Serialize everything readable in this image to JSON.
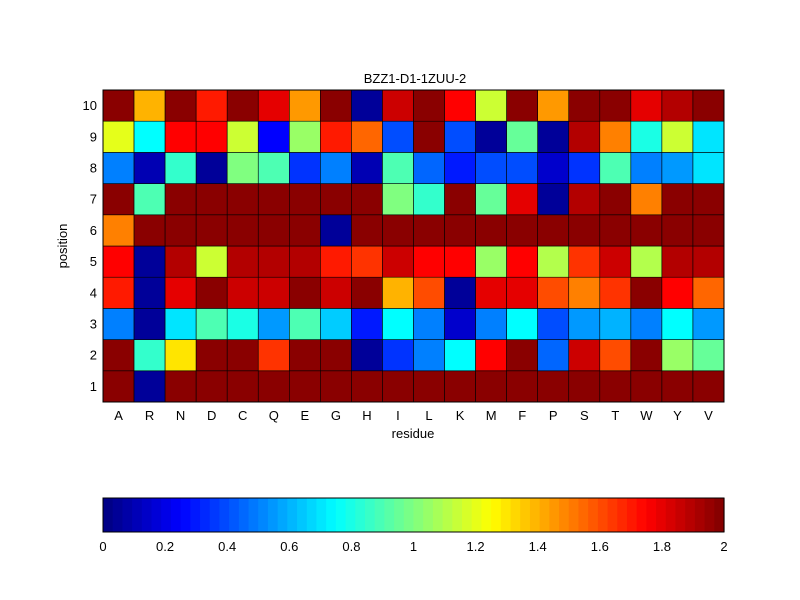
{
  "chart_data": {
    "type": "heatmap",
    "title": "BZZ1-D1-1ZUU-2",
    "xlabel": "residue",
    "ylabel": "position",
    "x_categories": [
      "A",
      "R",
      "N",
      "D",
      "C",
      "Q",
      "E",
      "G",
      "H",
      "I",
      "L",
      "K",
      "M",
      "F",
      "P",
      "S",
      "T",
      "W",
      "Y",
      "V"
    ],
    "y_categories": [
      "1",
      "2",
      "3",
      "4",
      "5",
      "6",
      "7",
      "8",
      "9",
      "10"
    ],
    "colormap": "jet",
    "clim": [
      0,
      2
    ],
    "values": [
      [
        1.98,
        0.05,
        1.98,
        1.98,
        1.98,
        1.98,
        1.98,
        1.98,
        1.98,
        1.98,
        1.98,
        1.98,
        1.98,
        1.98,
        1.98,
        1.98,
        1.98,
        1.98,
        1.98,
        1.98
      ],
      [
        1.98,
        0.85,
        1.3,
        1.98,
        1.98,
        1.65,
        1.98,
        1.98,
        0.05,
        0.35,
        0.5,
        0.75,
        1.75,
        1.98,
        0.45,
        1.85,
        1.6,
        1.98,
        1.05,
        0.95
      ],
      [
        0.5,
        0.05,
        0.7,
        0.9,
        0.8,
        0.55,
        0.9,
        0.65,
        0.3,
        0.75,
        0.5,
        0.15,
        0.5,
        0.75,
        0.4,
        0.55,
        0.6,
        0.5,
        0.75,
        0.55
      ],
      [
        1.7,
        0.05,
        1.8,
        1.98,
        1.85,
        1.85,
        1.98,
        1.85,
        1.98,
        1.4,
        1.6,
        0.05,
        1.8,
        1.8,
        1.6,
        1.5,
        1.65,
        1.98,
        1.75,
        1.55
      ],
      [
        1.75,
        0.05,
        1.9,
        1.15,
        1.9,
        1.9,
        1.9,
        1.7,
        1.65,
        1.85,
        1.75,
        1.75,
        1.05,
        1.75,
        1.1,
        1.65,
        1.85,
        1.1,
        1.9,
        1.9
      ],
      [
        1.5,
        1.98,
        1.98,
        1.98,
        1.98,
        1.98,
        1.98,
        0.05,
        1.98,
        1.98,
        1.98,
        1.98,
        1.98,
        1.98,
        1.98,
        1.98,
        1.98,
        1.98,
        1.98,
        1.98
      ],
      [
        1.98,
        0.9,
        1.98,
        1.98,
        1.98,
        1.98,
        1.98,
        1.98,
        1.98,
        1.0,
        0.85,
        1.98,
        0.95,
        1.8,
        0.05,
        1.9,
        1.98,
        1.5,
        1.98,
        1.98
      ],
      [
        0.5,
        0.1,
        0.85,
        0.05,
        1.0,
        0.9,
        0.35,
        0.5,
        0.1,
        0.9,
        0.45,
        0.3,
        0.4,
        0.4,
        0.15,
        0.35,
        0.9,
        0.5,
        0.55,
        0.7
      ],
      [
        1.2,
        0.75,
        1.75,
        1.75,
        1.15,
        0.25,
        1.05,
        1.7,
        1.55,
        0.4,
        1.98,
        0.4,
        0.05,
        0.95,
        0.05,
        1.9,
        1.5,
        0.8,
        1.15,
        0.7
      ],
      [
        1.98,
        1.4,
        1.98,
        1.7,
        1.98,
        1.8,
        1.45,
        1.98,
        0.05,
        1.85,
        1.98,
        1.75,
        1.15,
        1.98,
        1.45,
        1.98,
        1.98,
        1.8,
        1.9,
        1.98
      ]
    ],
    "colorbar": {
      "orientation": "horizontal",
      "ticks": [
        "0",
        "0.2",
        "0.4",
        "0.6",
        "0.8",
        "1",
        "1.2",
        "1.4",
        "1.6",
        "1.8",
        "2"
      ]
    }
  }
}
